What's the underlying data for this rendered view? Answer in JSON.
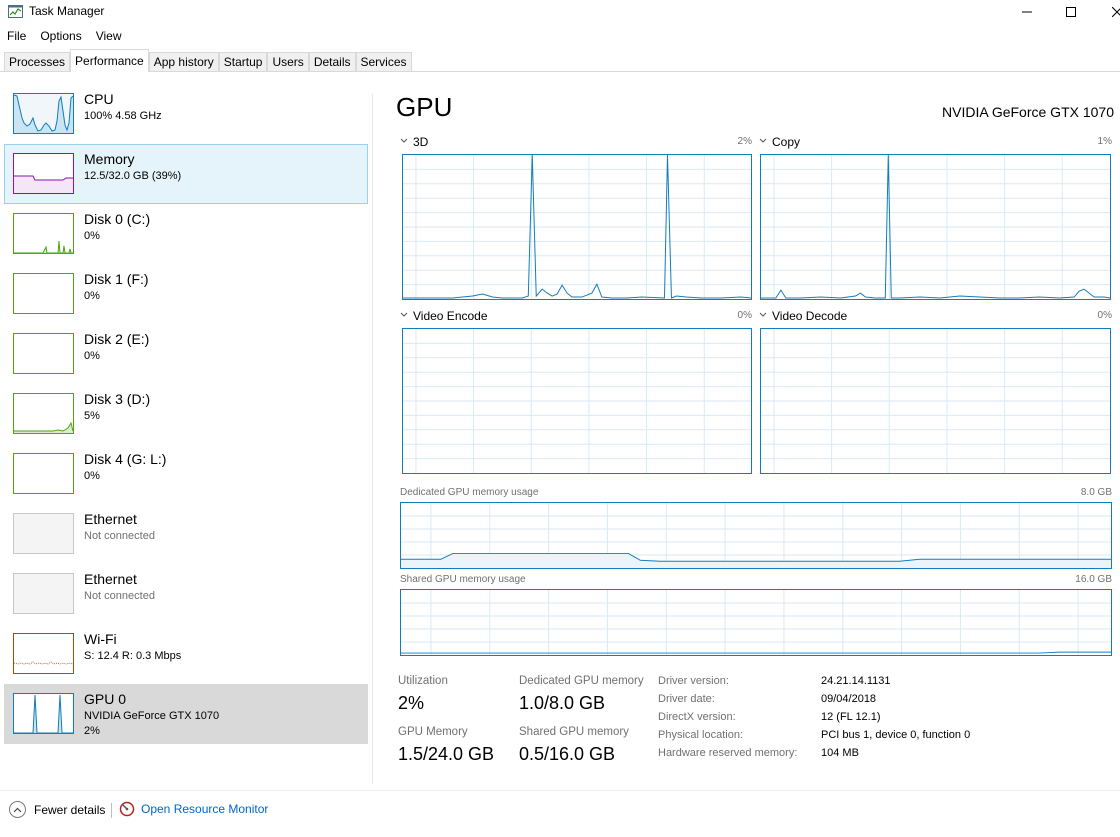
{
  "window": {
    "title": "Task Manager"
  },
  "menu": [
    "File",
    "Options",
    "View"
  ],
  "tabs": [
    "Processes",
    "Performance",
    "App history",
    "Startup",
    "Users",
    "Details",
    "Services"
  ],
  "active_tab": "Performance",
  "sidebar": [
    {
      "name": "CPU",
      "sub": "100% 4.58 GHz",
      "color": "#117dbb"
    },
    {
      "name": "Memory",
      "sub": "12.5/32.0 GB (39%)",
      "color": "#8b12ae"
    },
    {
      "name": "Disk 0 (C:)",
      "sub": "0%",
      "color": "#4da60c"
    },
    {
      "name": "Disk 1 (F:)",
      "sub": "0%",
      "color": "#4da60c"
    },
    {
      "name": "Disk 2 (E:)",
      "sub": "0%",
      "color": "#4da60c"
    },
    {
      "name": "Disk 3 (D:)",
      "sub": "5%",
      "color": "#4da60c"
    },
    {
      "name": "Disk 4 (G: L:)",
      "sub": "0%",
      "color": "#4da60c"
    },
    {
      "name": "Ethernet",
      "sub": "Not connected",
      "color": "#c0c0c0"
    },
    {
      "name": "Ethernet",
      "sub": "Not connected",
      "color": "#c0c0c0"
    },
    {
      "name": "Wi-Fi",
      "sub": "S: 12.4 R: 0.3 Mbps",
      "color": "#a74f01"
    },
    {
      "name": "GPU 0",
      "sub": "NVIDIA GeForce GTX 1070",
      "sub2": "2%",
      "color": "#117dbb"
    }
  ],
  "main": {
    "title": "GPU",
    "model": "NVIDIA GeForce GTX 1070",
    "engines": [
      {
        "label": "3D",
        "pct": "2%"
      },
      {
        "label": "Copy",
        "pct": "1%"
      },
      {
        "label": "Video Encode",
        "pct": "0%"
      },
      {
        "label": "Video Decode",
        "pct": "0%"
      }
    ],
    "dedicated_label": "Dedicated GPU memory usage",
    "dedicated_max": "8.0 GB",
    "shared_label": "Shared GPU memory usage",
    "shared_max": "16.0 GB",
    "stats": {
      "utilization_label": "Utilization",
      "utilization": "2%",
      "dedicated_label": "Dedicated GPU memory",
      "dedicated": "1.0/8.0 GB",
      "gpu_memory_label": "GPU Memory",
      "gpu_memory": "1.5/24.0 GB",
      "shared_label": "Shared GPU memory",
      "shared": "0.5/16.0 GB"
    },
    "info": [
      {
        "label": "Driver version:",
        "value": "24.21.14.1131"
      },
      {
        "label": "Driver date:",
        "value": "09/04/2018"
      },
      {
        "label": "DirectX version:",
        "value": "12 (FL 12.1)"
      },
      {
        "label": "Physical location:",
        "value": "PCI bus 1, device 0, function 0"
      },
      {
        "label": "Hardware reserved memory:",
        "value": "104 MB"
      }
    ]
  },
  "footer": {
    "fewer": "Fewer details",
    "resmon": "Open Resource Monitor"
  },
  "colors": {
    "gpu_line": "#117dbb",
    "grid": "#d9eaf4",
    "accent": "#0066cc"
  }
}
